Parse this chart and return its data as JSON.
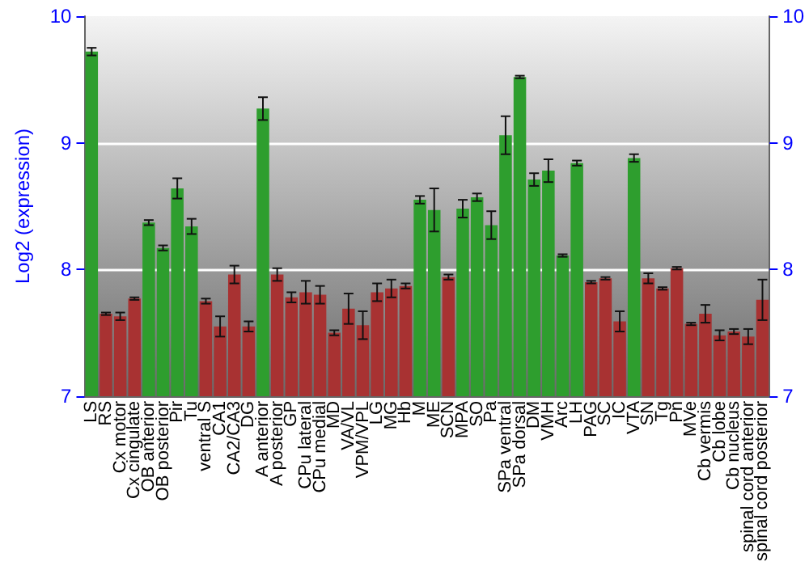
{
  "chart_data": {
    "type": "bar",
    "ylabel": "Log2 (expression)",
    "categories": [
      "LS",
      "RS",
      "Cx motor",
      "Cx cingulate",
      "OB anterior",
      "OB posterior",
      "Pir",
      "Tu",
      "ventral S",
      "CA1",
      "CA2/CA3",
      "DG",
      "A anterior",
      "A posterior",
      "GP",
      "CPu lateral",
      "CPu medial",
      "MD",
      "VA/VL",
      "VPM/VPL",
      "LG",
      "MG",
      "Hb",
      "M",
      "ME",
      "SCN",
      "MPA",
      "SO",
      "Pa",
      "SPa ventral",
      "SPa dorsal",
      "DM",
      "VMH",
      "Arc",
      "LH",
      "PAG",
      "SC",
      "IC",
      "VTA",
      "SN",
      "Tg",
      "Pn",
      "MVe",
      "Cb vermis",
      "Cb lobe",
      "Cb nucleus",
      "spinal cord anterior",
      "spinal cord posterior"
    ],
    "values": [
      9.72,
      7.65,
      7.63,
      7.77,
      8.37,
      8.17,
      8.64,
      8.34,
      7.75,
      7.55,
      7.96,
      7.55,
      9.27,
      7.96,
      7.78,
      7.82,
      7.8,
      7.5,
      7.69,
      7.56,
      7.82,
      7.85,
      7.87,
      8.55,
      8.47,
      7.94,
      8.48,
      8.57,
      8.35,
      9.06,
      9.52,
      8.71,
      8.78,
      8.11,
      8.84,
      7.9,
      7.93,
      7.59,
      8.88,
      7.93,
      7.85,
      8.01,
      7.57,
      7.65,
      7.48,
      7.51,
      7.47,
      7.76
    ],
    "errors": [
      0.03,
      0.01,
      0.03,
      0.01,
      0.02,
      0.02,
      0.08,
      0.06,
      0.02,
      0.08,
      0.07,
      0.04,
      0.09,
      0.05,
      0.04,
      0.09,
      0.07,
      0.02,
      0.12,
      0.11,
      0.07,
      0.07,
      0.02,
      0.03,
      0.17,
      0.02,
      0.07,
      0.03,
      0.11,
      0.15,
      0.01,
      0.05,
      0.09,
      0.01,
      0.02,
      0.01,
      0.01,
      0.08,
      0.03,
      0.04,
      0.01,
      0.01,
      0.01,
      0.07,
      0.04,
      0.02,
      0.06,
      0.16
    ],
    "colors": [
      "#2e9e2e",
      "#a83232",
      "#a83232",
      "#a83232",
      "#2e9e2e",
      "#2e9e2e",
      "#2e9e2e",
      "#2e9e2e",
      "#a83232",
      "#a83232",
      "#a83232",
      "#a83232",
      "#2e9e2e",
      "#a83232",
      "#a83232",
      "#a83232",
      "#a83232",
      "#a83232",
      "#a83232",
      "#a83232",
      "#a83232",
      "#a83232",
      "#a83232",
      "#2e9e2e",
      "#2e9e2e",
      "#a83232",
      "#2e9e2e",
      "#2e9e2e",
      "#2e9e2e",
      "#2e9e2e",
      "#2e9e2e",
      "#2e9e2e",
      "#2e9e2e",
      "#2e9e2e",
      "#2e9e2e",
      "#a83232",
      "#a83232",
      "#a83232",
      "#2e9e2e",
      "#a83232",
      "#a83232",
      "#a83232",
      "#a83232",
      "#a83232",
      "#a83232",
      "#a83232",
      "#a83232",
      "#a83232"
    ],
    "ylim": [
      7,
      10
    ],
    "yticks": [
      7,
      8,
      9,
      10
    ],
    "y2lim": [
      7,
      10
    ],
    "y2ticks": [
      7,
      8,
      9,
      10
    ],
    "grid": "y"
  }
}
